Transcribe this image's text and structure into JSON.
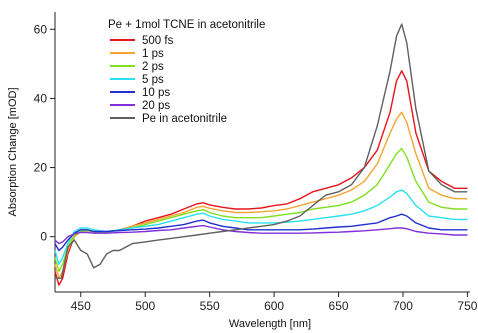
{
  "chart_data": {
    "type": "line",
    "xlabel": "Wavelength [nm]",
    "ylabel": "Absorption Change [mOD]",
    "xlim": [
      430,
      752
    ],
    "ylim": [
      -16,
      65
    ],
    "xticks": [
      450,
      500,
      550,
      600,
      650,
      700,
      750
    ],
    "yticks": [
      0,
      20,
      40,
      60
    ],
    "legend": {
      "title": "Pe + 1mol TCNE in acetonitrile",
      "placement": "top-left"
    },
    "series": [
      {
        "name": "500 fs",
        "color": "#e8141c",
        "x": [
          430,
          433,
          436,
          440,
          445,
          450,
          455,
          460,
          470,
          480,
          490,
          500,
          510,
          520,
          530,
          540,
          545,
          550,
          560,
          570,
          580,
          590,
          600,
          610,
          620,
          630,
          640,
          650,
          660,
          670,
          680,
          690,
          695,
          699,
          703,
          710,
          720,
          730,
          740,
          750
        ],
        "y": [
          -10,
          -14,
          -12,
          -5,
          0,
          1.5,
          1.8,
          1.5,
          1.2,
          2,
          3,
          4.5,
          5.5,
          6.5,
          8,
          9.5,
          9.8,
          9.2,
          8.5,
          8,
          8,
          8.3,
          9,
          9.5,
          11,
          13,
          14,
          15,
          17,
          20,
          25,
          36,
          45,
          48,
          45,
          30,
          19,
          16,
          14,
          14
        ]
      },
      {
        "name": "1 ps",
        "color": "#f5a530",
        "x": [
          430,
          433,
          436,
          440,
          445,
          450,
          455,
          460,
          470,
          480,
          490,
          500,
          510,
          520,
          530,
          540,
          545,
          550,
          560,
          570,
          580,
          590,
          600,
          610,
          620,
          630,
          640,
          650,
          660,
          670,
          680,
          690,
          695,
          699,
          703,
          710,
          720,
          730,
          740,
          750
        ],
        "y": [
          -8,
          -12,
          -10,
          -4,
          0,
          1.5,
          1.8,
          1.5,
          1.2,
          2,
          3,
          4,
          5,
          6,
          7,
          8.5,
          8.8,
          8.2,
          7.5,
          7,
          7,
          7.2,
          7.5,
          8,
          9,
          10,
          11,
          12,
          13.5,
          16,
          21,
          30,
          34,
          36,
          33,
          24,
          14,
          12,
          11,
          11
        ]
      },
      {
        "name": "2 ps",
        "color": "#80e020",
        "x": [
          430,
          433,
          436,
          440,
          445,
          450,
          455,
          460,
          470,
          480,
          490,
          500,
          510,
          520,
          530,
          540,
          545,
          550,
          560,
          570,
          580,
          590,
          600,
          610,
          620,
          630,
          640,
          650,
          660,
          670,
          680,
          690,
          695,
          699,
          703,
          710,
          720,
          730,
          740,
          750
        ],
        "y": [
          -6,
          -10,
          -8,
          -3,
          0.5,
          1.5,
          1.8,
          1.5,
          1.2,
          2,
          2.5,
          3.5,
          4.5,
          5.5,
          6.5,
          7.5,
          7.8,
          7,
          6,
          5.5,
          5.5,
          5.5,
          6,
          6.5,
          7,
          8,
          8.5,
          9,
          10,
          12,
          15,
          21,
          24,
          25.5,
          23,
          16,
          10,
          8.5,
          8,
          8
        ]
      },
      {
        "name": "5 ps",
        "color": "#28e0f0",
        "x": [
          430,
          433,
          436,
          440,
          445,
          450,
          455,
          460,
          470,
          480,
          490,
          500,
          510,
          520,
          530,
          540,
          545,
          550,
          560,
          570,
          580,
          590,
          600,
          610,
          620,
          630,
          640,
          650,
          660,
          670,
          680,
          690,
          695,
          699,
          703,
          710,
          720,
          730,
          740,
          750
        ],
        "y": [
          -4,
          -8,
          -6,
          -2,
          1.5,
          2.5,
          2.5,
          2,
          1.5,
          2,
          2.5,
          3,
          3.5,
          4.5,
          5.5,
          6.5,
          6.8,
          6,
          5,
          4.5,
          4,
          4,
          4,
          4.2,
          4.5,
          5,
          5.5,
          6,
          6.5,
          7.5,
          9,
          11.5,
          13,
          13.5,
          12.5,
          9,
          6,
          5.5,
          5,
          5
        ]
      },
      {
        "name": "10 ps",
        "color": "#2030d0",
        "x": [
          430,
          433,
          436,
          440,
          445,
          450,
          455,
          460,
          470,
          480,
          490,
          500,
          510,
          520,
          530,
          540,
          545,
          550,
          560,
          570,
          580,
          590,
          600,
          610,
          620,
          630,
          640,
          650,
          660,
          670,
          680,
          690,
          695,
          699,
          703,
          710,
          720,
          730,
          740,
          750
        ],
        "y": [
          -2,
          -4,
          -3,
          -1,
          1,
          2,
          2,
          1.5,
          1.5,
          1.8,
          2,
          2.2,
          2.5,
          3,
          3.5,
          4.5,
          4.8,
          4,
          3,
          2.5,
          2,
          2,
          2,
          2,
          2,
          2.2,
          2.5,
          2.8,
          3,
          3.5,
          4,
          5.5,
          6,
          6.5,
          6,
          4,
          2.5,
          2,
          2,
          2
        ]
      },
      {
        "name": "20 ps",
        "color": "#8030d8",
        "x": [
          430,
          433,
          436,
          440,
          445,
          450,
          455,
          460,
          470,
          480,
          490,
          500,
          510,
          520,
          530,
          540,
          545,
          550,
          560,
          570,
          580,
          590,
          600,
          610,
          620,
          630,
          640,
          650,
          660,
          670,
          680,
          690,
          695,
          699,
          703,
          710,
          720,
          730,
          740,
          750
        ],
        "y": [
          -1,
          -2,
          -1.5,
          0,
          0.8,
          1.2,
          1.2,
          1,
          1,
          1.2,
          1.3,
          1.5,
          1.8,
          2,
          2.5,
          3,
          3.2,
          2.8,
          2,
          1.5,
          1.2,
          1,
          1,
          1,
          1,
          1.1,
          1.2,
          1.3,
          1.5,
          1.7,
          2,
          2.3,
          2.5,
          2.5,
          2.3,
          1.5,
          1,
          0.8,
          0.5,
          0.5
        ]
      },
      {
        "name": "Pe in acetonitrile",
        "color": "#606060",
        "x": [
          430,
          435,
          440,
          445,
          450,
          455,
          460,
          465,
          470,
          475,
          480,
          490,
          500,
          510,
          520,
          530,
          540,
          550,
          560,
          570,
          580,
          590,
          600,
          610,
          620,
          630,
          640,
          650,
          660,
          670,
          680,
          690,
          695,
          699,
          703,
          710,
          720,
          730,
          740,
          750
        ],
        "y": [
          -12,
          -12,
          -3,
          -1,
          -4,
          -5,
          -9,
          -8,
          -5,
          -4,
          -4,
          -2,
          -1.5,
          -1,
          -0.5,
          0,
          0.5,
          1,
          1.5,
          2,
          2.5,
          3,
          3.5,
          4.5,
          6,
          9,
          12,
          13,
          15,
          20,
          32,
          48,
          58,
          61.5,
          56,
          37,
          19,
          15,
          13,
          13
        ]
      }
    ]
  }
}
